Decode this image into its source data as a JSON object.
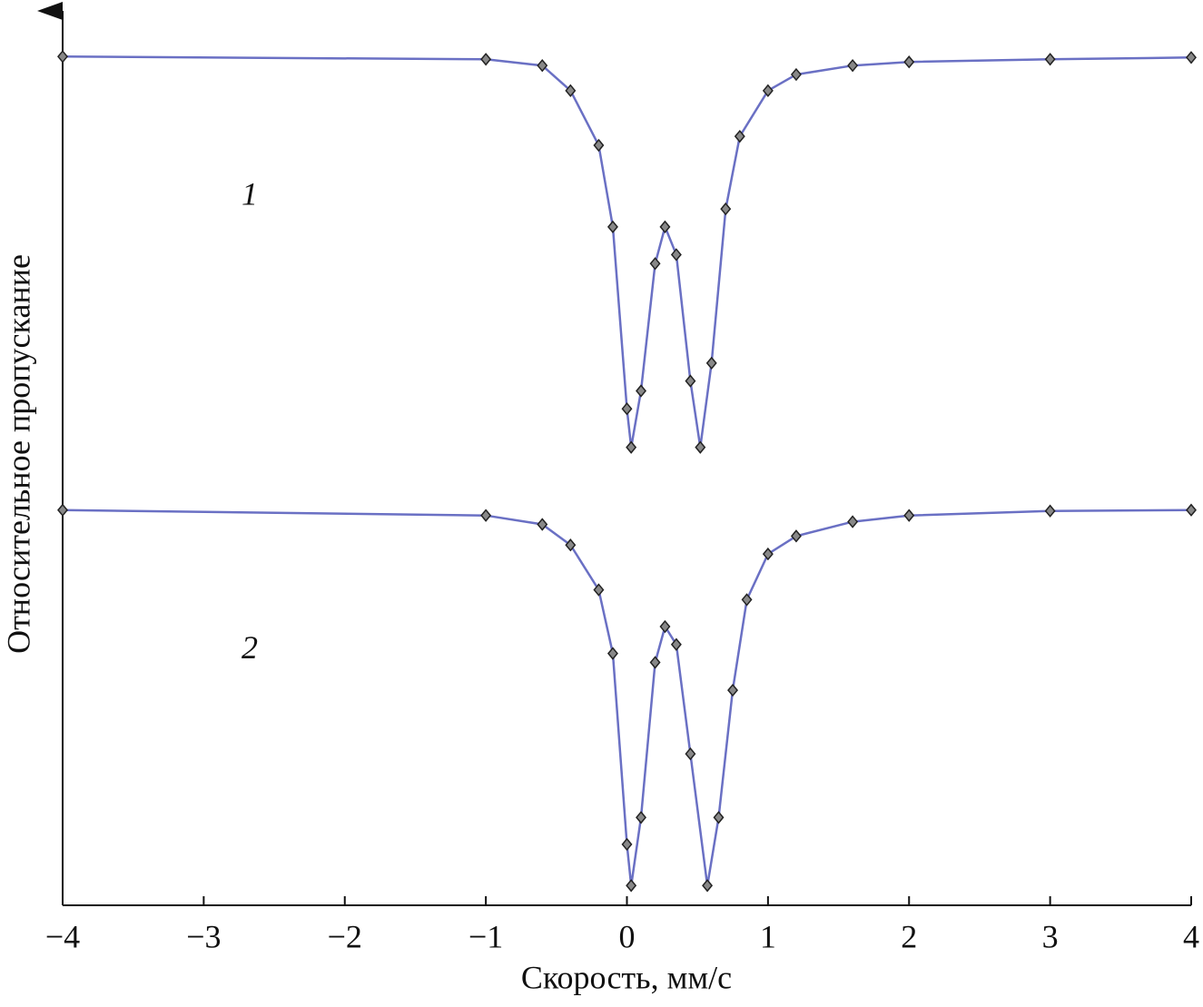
{
  "chart_data": {
    "type": "line",
    "xlabel": "Скорость, мм/с",
    "ylabel": "Относительное пропускание",
    "xlim": [
      -4,
      4
    ],
    "ylim": [
      0,
      1
    ],
    "xticks": [
      {
        "value": -4,
        "label": "−4"
      },
      {
        "value": -3,
        "label": "−3"
      },
      {
        "value": -2,
        "label": "−2"
      },
      {
        "value": -1,
        "label": "−1"
      },
      0,
      1,
      2,
      3,
      4
    ],
    "series": [
      {
        "name": "1",
        "color": "#6a70c4",
        "x": [
          -4,
          -1,
          -0.6,
          -0.4,
          -0.2,
          -0.1,
          0,
          0.03,
          0.1,
          0.2,
          0.27,
          0.35,
          0.45,
          0.52,
          0.6,
          0.7,
          0.8,
          1,
          1.2,
          1.6,
          2,
          3,
          4
        ],
        "values": [
          0.947,
          0.944,
          0.937,
          0.909,
          0.848,
          0.757,
          0.554,
          0.511,
          0.574,
          0.716,
          0.757,
          0.726,
          0.585,
          0.511,
          0.605,
          0.777,
          0.858,
          0.909,
          0.927,
          0.937,
          0.941,
          0.944,
          0.946
        ]
      },
      {
        "name": "2",
        "color": "#6a70c4",
        "x": [
          -4,
          -1,
          -0.6,
          -0.4,
          -0.2,
          -0.1,
          0,
          0.03,
          0.1,
          0.2,
          0.27,
          0.35,
          0.45,
          0.57,
          0.65,
          0.75,
          0.85,
          1,
          1.2,
          1.6,
          2,
          3,
          4
        ],
        "values": [
          0.441,
          0.435,
          0.425,
          0.402,
          0.352,
          0.281,
          0.068,
          0.022,
          0.098,
          0.271,
          0.311,
          0.291,
          0.169,
          0.022,
          0.098,
          0.24,
          0.341,
          0.392,
          0.412,
          0.428,
          0.435,
          0.44,
          0.441
        ]
      }
    ]
  }
}
